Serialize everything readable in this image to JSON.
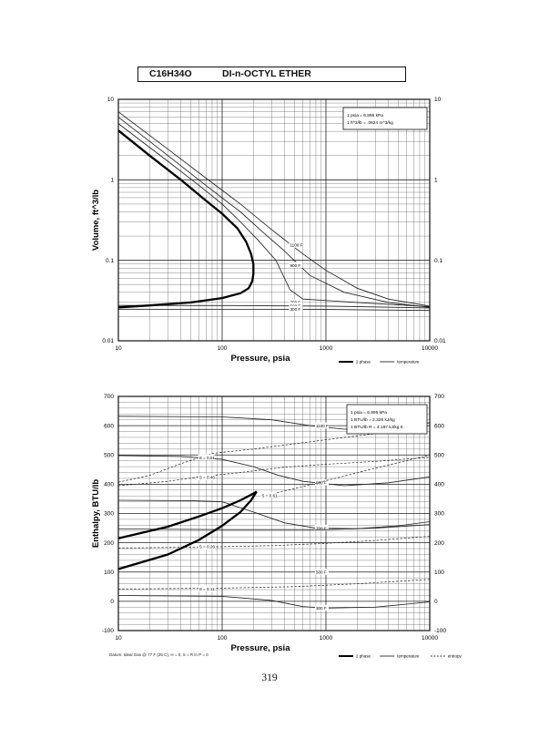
{
  "header": {
    "formula": "C16H34O",
    "name": "DI-n-OCTYL ETHER"
  },
  "page_number": "319",
  "chart_data": [
    {
      "type": "line",
      "id": "volume",
      "xscale": "log",
      "yscale": "log",
      "xlim": [
        10,
        10000
      ],
      "ylim": [
        0.01,
        10
      ],
      "xlabel": "Pressure,  psia",
      "ylabel": "Volume,  ft^3/lb",
      "xticks": [
        "10",
        "100",
        "1000",
        "10000"
      ],
      "yticks": [
        "0.01",
        "0.1",
        "1",
        "10"
      ],
      "info_lines": [
        "1 psia  =  6.895 kPa",
        "1 ft^3/lb  =  .0624 m^3/kg"
      ],
      "legend": [
        {
          "label": "2 phase",
          "style": "thick"
        },
        {
          "label": "temperature",
          "style": "thin"
        }
      ],
      "two_phase": {
        "vapor": [
          [
            10,
            4.1
          ],
          [
            20,
            2.0
          ],
          [
            40,
            1.0
          ],
          [
            70,
            0.55
          ],
          [
            100,
            0.38
          ],
          [
            140,
            0.25
          ],
          [
            170,
            0.17
          ],
          [
            190,
            0.12
          ],
          [
            200,
            0.09
          ]
        ],
        "liquid": [
          [
            10,
            0.026
          ],
          [
            20,
            0.0275
          ],
          [
            50,
            0.03
          ],
          [
            100,
            0.034
          ],
          [
            150,
            0.039
          ],
          [
            180,
            0.045
          ],
          [
            195,
            0.055
          ],
          [
            200,
            0.068
          ],
          [
            200,
            0.09
          ]
        ]
      },
      "series": [
        {
          "name": "1100 F",
          "label_at": [
            450,
            0.155
          ],
          "values": [
            [
              10,
              7.0
            ],
            [
              30,
              2.4
            ],
            [
              70,
              1.05
            ],
            [
              150,
              0.5
            ],
            [
              300,
              0.24
            ],
            [
              600,
              0.12
            ],
            [
              1000,
              0.075
            ],
            [
              2000,
              0.045
            ],
            [
              4000,
              0.033
            ],
            [
              10000,
              0.027
            ]
          ]
        },
        {
          "name": "900 F",
          "label_at": [
            450,
            0.087
          ],
          "values": [
            [
              10,
              6.0
            ],
            [
              30,
              2.0
            ],
            [
              70,
              0.85
            ],
            [
              150,
              0.4
            ],
            [
              250,
              0.22
            ],
            [
              400,
              0.13
            ],
            [
              700,
              0.065
            ],
            [
              1500,
              0.04
            ],
            [
              4000,
              0.03
            ],
            [
              10000,
              0.026
            ]
          ]
        },
        {
          "name": "700 F",
          "label_at": [
            450,
            0.0302
          ],
          "values": [
            [
              10,
              5.0
            ],
            [
              30,
              1.7
            ],
            [
              60,
              0.85
            ],
            [
              100,
              0.5
            ],
            [
              150,
              0.3
            ],
            [
              220,
              0.18
            ],
            [
              330,
              0.1
            ],
            [
              450,
              0.043
            ],
            [
              600,
              0.033
            ],
            [
              2000,
              0.03
            ],
            [
              10000,
              0.0265
            ]
          ]
        },
        {
          "name": "500 F",
          "label_at": [
            450,
            0.0272
          ],
          "values": [
            [
              10,
              0.0275
            ],
            [
              100,
              0.0274
            ],
            [
              1000,
              0.027
            ],
            [
              10000,
              0.0256
            ]
          ]
        },
        {
          "name": "300 F",
          "label_at": [
            450,
            0.0247
          ],
          "values": [
            [
              10,
              0.0247
            ],
            [
              100,
              0.0246
            ],
            [
              1000,
              0.0245
            ],
            [
              10000,
              0.0238
            ]
          ]
        }
      ]
    },
    {
      "type": "line",
      "id": "enthalpy",
      "xscale": "log",
      "yscale": "linear",
      "xlim": [
        10,
        10000
      ],
      "ylim": [
        -100,
        700
      ],
      "xlabel": "Pressure,  psia",
      "ylabel": "Enthalpy,  BTU/lb",
      "xticks": [
        "10",
        "100",
        "1000",
        "10000"
      ],
      "yticks": [
        "-100",
        "0",
        "100",
        "200",
        "300",
        "400",
        "500",
        "600",
        "700"
      ],
      "info_lines": [
        "1 psia  =  6.895 kPa",
        "1 BTU/lb  =  2.326 kJ/kg",
        "1 BTU/lb R  =  4.187 kJ/kg K"
      ],
      "legend": [
        {
          "label": "2 phase",
          "style": "thick"
        },
        {
          "label": "temperature",
          "style": "thin"
        },
        {
          "label": "entropy",
          "style": "dashed"
        }
      ],
      "footnote": "Datum: Ideal Gas @ 77 F (25 C),  H = 0,  S = R ln P = 0",
      "two_phase": {
        "vapor": [
          [
            10,
            215
          ],
          [
            30,
            255
          ],
          [
            60,
            290
          ],
          [
            100,
            318
          ],
          [
            150,
            345
          ],
          [
            200,
            368
          ],
          [
            215,
            375
          ]
        ],
        "liquid": [
          [
            10,
            110
          ],
          [
            30,
            160
          ],
          [
            60,
            210
          ],
          [
            100,
            258
          ],
          [
            150,
            305
          ],
          [
            190,
            345
          ],
          [
            215,
            375
          ]
        ]
      },
      "temperature_series": [
        {
          "name": "1100 F",
          "label_at": [
            800,
            600
          ],
          "values": [
            [
              10,
              632
            ],
            [
              100,
              630
            ],
            [
              300,
              620
            ],
            [
              700,
              600
            ],
            [
              1500,
              588
            ],
            [
              4000,
              590
            ],
            [
              10000,
              610
            ]
          ]
        },
        {
          "name": "900 F",
          "label_at": [
            800,
            405
          ],
          "values": [
            [
              10,
              498
            ],
            [
              40,
              495
            ],
            [
              100,
              485
            ],
            [
              200,
              460
            ],
            [
              350,
              430
            ],
            [
              600,
              410
            ],
            [
              1500,
              395
            ],
            [
              4000,
              405
            ],
            [
              10000,
              425
            ]
          ]
        },
        {
          "name": "700 F",
          "label_at": [
            800,
            250
          ],
          "values": [
            [
              10,
              345
            ],
            [
              50,
              344
            ],
            [
              100,
              340
            ],
            [
              200,
              305
            ],
            [
              400,
              268
            ],
            [
              800,
              250
            ],
            [
              2000,
              248
            ],
            [
              5000,
              258
            ],
            [
              10000,
              272
            ]
          ]
        },
        {
          "name": "500 F",
          "label_at": [
            800,
            100
          ],
          "values": [
            [
              10,
              247
            ],
            [
              100,
              245
            ],
            [
              300,
              245
            ],
            [
              1000,
              245
            ],
            [
              3000,
              250
            ],
            [
              10000,
              262
            ]
          ]
        },
        {
          "name": "300 F",
          "label_at": [
            800,
            -23
          ],
          "values": [
            [
              10,
              20
            ],
            [
              100,
              17
            ],
            [
              300,
              3
            ],
            [
              600,
              -18
            ],
            [
              1000,
              -23
            ],
            [
              3000,
              -20
            ],
            [
              10000,
              -2
            ]
          ]
        }
      ],
      "entropy_series": [
        {
          "name": "S = 0.61",
          "label_at": [
            240,
            362
          ],
          "values": [
            [
              240,
              360
            ],
            [
              500,
              385
            ],
            [
              1000,
              412
            ],
            [
              3000,
              455
            ],
            [
              10000,
              500
            ]
          ]
        },
        {
          "name": "S = 0.51",
          "label_at": [
            60,
            491
          ],
          "values": [
            [
              10,
              407
            ],
            [
              20,
              430
            ],
            [
              40,
              470
            ],
            [
              80,
              505
            ],
            [
              200,
              520
            ],
            [
              500,
              538
            ],
            [
              1500,
              560
            ],
            [
              5000,
              582
            ],
            [
              10000,
              600
            ]
          ]
        },
        {
          "name": "S = 0.46",
          "label_at": [
            60,
            424
          ],
          "values": [
            [
              10,
              395
            ],
            [
              30,
              410
            ],
            [
              60,
              425
            ],
            [
              150,
              440
            ],
            [
              400,
              458
            ],
            [
              1000,
              468
            ],
            [
              3000,
              478
            ],
            [
              10000,
              492
            ]
          ]
        },
        {
          "name": "S = 0.26",
          "label_at": [
            60,
            187
          ],
          "values": [
            [
              10,
              182
            ],
            [
              60,
              185
            ],
            [
              300,
              190
            ],
            [
              1000,
              198
            ],
            [
              3000,
              208
            ],
            [
              10000,
              222
            ]
          ]
        },
        {
          "name": "S = 0.11",
          "label_at": [
            60,
            43
          ],
          "values": [
            [
              10,
              42
            ],
            [
              100,
              45
            ],
            [
              500,
              50
            ],
            [
              2000,
              60
            ],
            [
              10000,
              75
            ]
          ]
        }
      ]
    }
  ]
}
